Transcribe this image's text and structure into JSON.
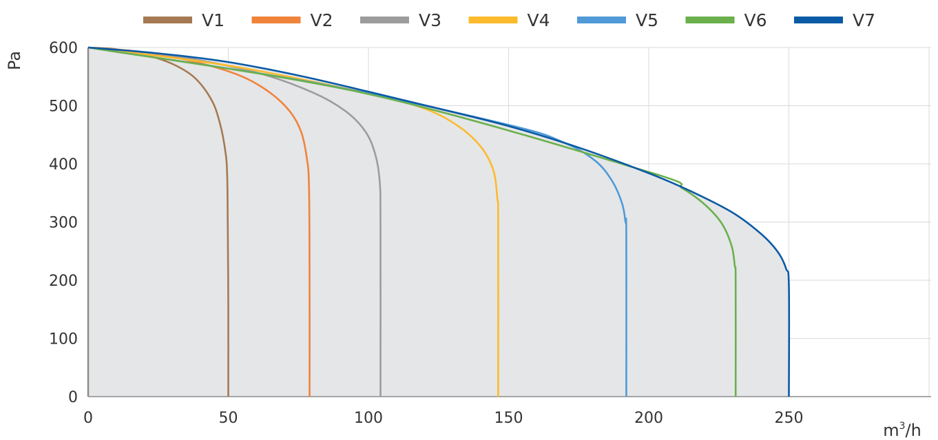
{
  "chart_data": {
    "type": "line",
    "title": "",
    "xlabel": "m³/h",
    "xlabel_main": "m",
    "xlabel_sup": "3",
    "xlabel_tail": "/h",
    "ylabel": "Pa",
    "xlim": [
      0,
      300
    ],
    "ylim": [
      0,
      600
    ],
    "x_ticks": [
      0,
      50,
      100,
      150,
      200,
      250
    ],
    "x_tick_labels": [
      "0",
      "50",
      "100",
      "150",
      "200",
      "250"
    ],
    "y_ticks": [
      0,
      100,
      200,
      300,
      400,
      500,
      600
    ],
    "y_tick_labels": [
      "0",
      "100",
      "200",
      "300",
      "400",
      "500",
      "600"
    ],
    "grid": true,
    "legend_position": "top",
    "area_fill": "#e5e6e8",
    "series": [
      {
        "name": "V1",
        "color": "#a57a52",
        "x": [
          0,
          10,
          20,
          30,
          38,
          44,
          47,
          49,
          49.6,
          49.8,
          50,
          50
        ],
        "y": [
          600,
          597,
          588,
          572,
          548,
          510,
          470,
          420,
          380,
          300,
          150,
          0
        ]
      },
      {
        "name": "V2",
        "color": "#f0833a",
        "x": [
          0,
          20,
          40,
          55,
          65,
          72,
          76,
          78,
          78.8,
          79,
          79
        ],
        "y": [
          600,
          592,
          573,
          550,
          522,
          490,
          455,
          410,
          360,
          200,
          0
        ]
      },
      {
        "name": "V3",
        "color": "#9c9c9c",
        "x": [
          0,
          30,
          60,
          80,
          92,
          99,
          102.5,
          104,
          104.3,
          104.3
        ],
        "y": [
          600,
          586,
          557,
          523,
          490,
          455,
          415,
          370,
          300,
          0
        ]
      },
      {
        "name": "V4",
        "color": "#fbbb2c",
        "x": [
          0,
          50,
          100,
          120,
          132,
          140,
          144.5,
          146,
          146.3,
          146.3
        ],
        "y": [
          600,
          569,
          521,
          495,
          465,
          430,
          390,
          340,
          300,
          0
        ]
      },
      {
        "name": "V5",
        "color": "#4f9ad7",
        "x": [
          0,
          80,
          150,
          170,
          181,
          187,
          190.5,
          191.7,
          192,
          192
        ],
        "y": [
          600,
          540,
          467,
          436,
          405,
          370,
          332,
          300,
          280,
          0
        ]
      },
      {
        "name": "V6",
        "color": "#6ab04c",
        "x": [
          0,
          100,
          200,
          212,
          220,
          226,
          229.5,
          230.7,
          231,
          231
        ],
        "y": [
          600,
          520,
          386,
          358,
          330,
          298,
          260,
          225,
          200,
          0
        ]
      },
      {
        "name": "V7",
        "color": "#0a5aa5",
        "x": [
          0,
          25,
          50,
          75,
          100,
          125,
          150,
          175,
          200,
          215,
          230,
          240,
          246,
          249,
          250,
          250
        ],
        "y": [
          600,
          590,
          575,
          552,
          524,
          495,
          465,
          428,
          384,
          353,
          316,
          280,
          249,
          220,
          190,
          0
        ]
      }
    ]
  }
}
